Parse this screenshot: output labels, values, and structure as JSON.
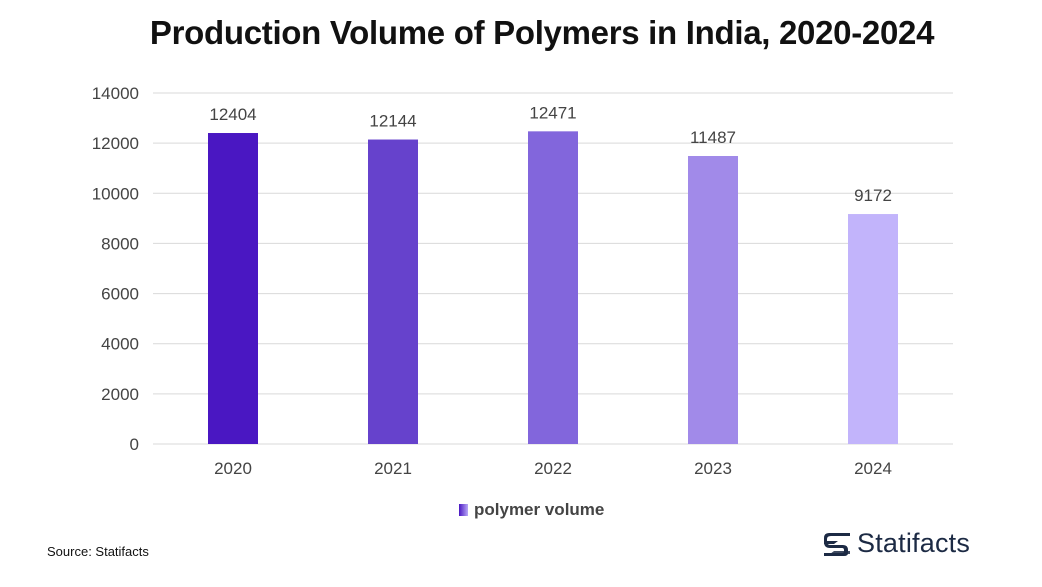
{
  "title": "Production Volume of Polymers in India, 2020-2024",
  "chart_data": {
    "type": "bar",
    "title": "Production Volume of Polymers in India, 2020-2024",
    "categories": [
      "2020",
      "2021",
      "2022",
      "2023",
      "2024"
    ],
    "series": [
      {
        "name": "polymer volume",
        "values": [
          12404,
          12144,
          12471,
          11487,
          9172
        ]
      }
    ],
    "ylim": [
      0,
      14000
    ],
    "yticks": [
      0,
      2000,
      4000,
      6000,
      8000,
      10000,
      12000,
      14000
    ],
    "xlabel": "",
    "ylabel": "",
    "grid": true,
    "legend_position": "bottom-center",
    "bar_colors": [
      "#4a17c2",
      "#6642cc",
      "#8266dc",
      "#a18ae9",
      "#c2b4fb"
    ]
  },
  "legend": {
    "label": "polymer volume"
  },
  "footer": {
    "source": "Source: Statifacts",
    "brand": "Statifacts"
  },
  "colors": {
    "grid": "#d9d9d9",
    "text": "#444444",
    "brand": "#1c2a44"
  }
}
